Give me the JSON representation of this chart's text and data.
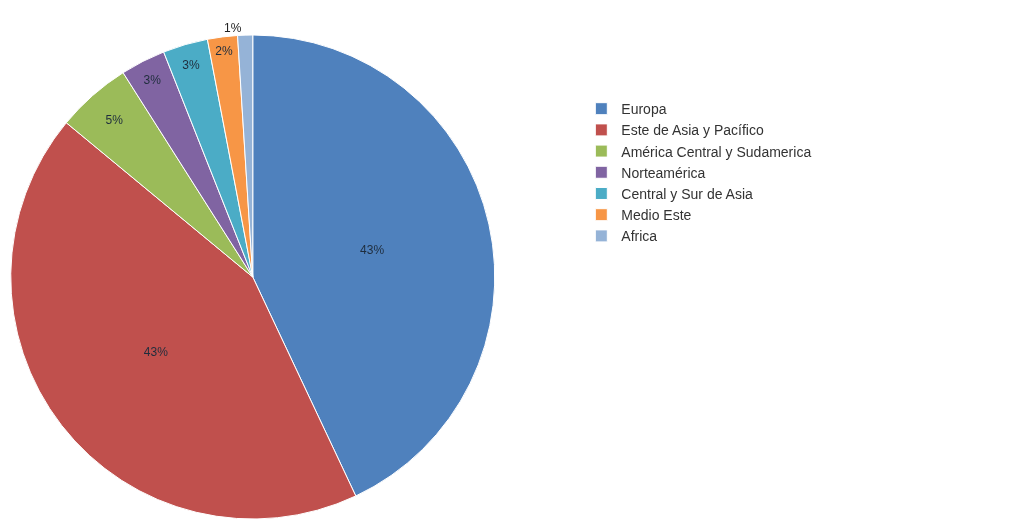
{
  "chart_data": {
    "type": "pie",
    "categories": [
      "Europa",
      "Este de Asia y Pacífico",
      "América Central y Sudamerica",
      "Norteamérica",
      "Central y Sur de Asia",
      "Medio Este",
      "Africa"
    ],
    "values": [
      43,
      43,
      5,
      3,
      3,
      2,
      1
    ],
    "value_labels": [
      "43%",
      "43%",
      "5%",
      "3%",
      "3%",
      "2%",
      "1%"
    ],
    "colors": [
      "#4f81bd",
      "#c0504d",
      "#9bbb59",
      "#8064a2",
      "#4bacc6",
      "#f79646",
      "#95b3d7"
    ],
    "legend": "right"
  }
}
